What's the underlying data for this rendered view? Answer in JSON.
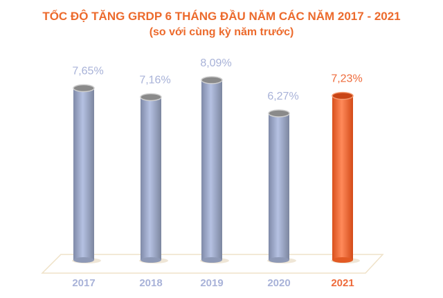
{
  "chart_data": {
    "type": "bar",
    "title": "TỐC ĐỘ TĂNG GRDP 6 THÁNG ĐẦU NĂM CÁC NĂM 2017 - 2021",
    "subtitle": "(so với cùng kỳ năm trước)",
    "categories": [
      "2017",
      "2018",
      "2019",
      "2020",
      "2021"
    ],
    "values": [
      7.65,
      7.16,
      8.09,
      6.27,
      7.23
    ],
    "data_labels": [
      "7,65%",
      "7,16%",
      "8,09%",
      "6,27%",
      "7,23%"
    ],
    "unit": "%",
    "highlight_index": 4,
    "grid": false,
    "style": "3d-cylinder",
    "colors": {
      "default": "#a8b4d6",
      "highlight": "#f06a30",
      "label_default": "#a8b2d8",
      "label_highlight": "#ee6a3a",
      "title": "#ec6a2c"
    }
  }
}
